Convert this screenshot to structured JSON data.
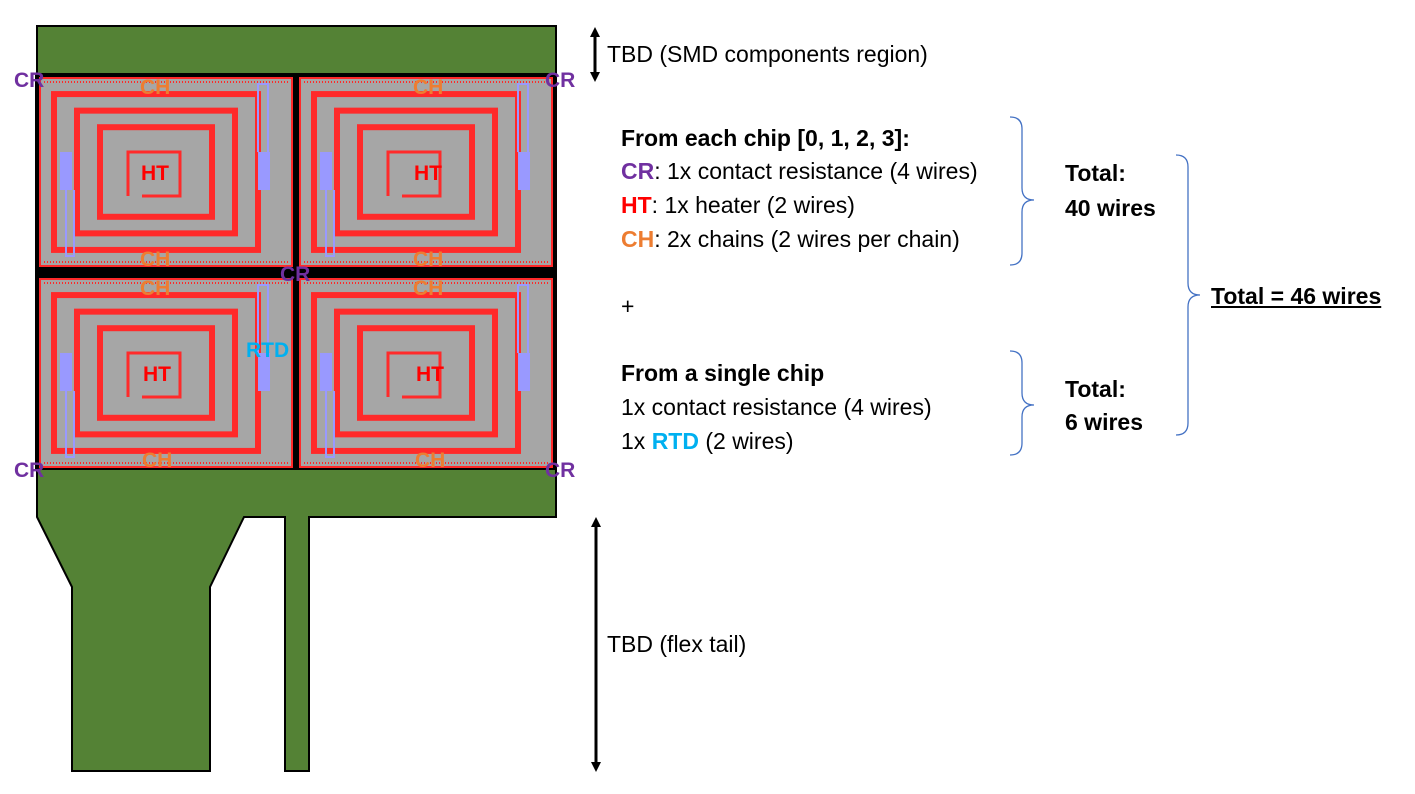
{
  "labels": {
    "cr": "CR",
    "ch": "CH",
    "ht": "HT",
    "rtd": "RTD"
  },
  "annotations": {
    "smd_region": "TBD (SMD components region)",
    "flex_tail": "TBD (flex tail)"
  },
  "group_each_chip": {
    "heading": "From each chip [0, 1, 2, 3]:",
    "line1_rest": ": 1x contact resistance (4 wires)",
    "line2_rest": ": 1x heater (2 wires)",
    "line3_rest": ": 2x chains (2 wires per chain)",
    "total_label": "Total:",
    "total_value": "40 wires"
  },
  "plus": "+",
  "group_single_chip": {
    "heading": "From a single chip",
    "line1": "1x contact resistance (4 wires)",
    "line2_prefix": "1x ",
    "line2_rest": " (2 wires)",
    "total_label": "Total:",
    "total_value": "6 wires"
  },
  "grand_total": "Total = 46 wires",
  "colors": {
    "board_green": "#548235",
    "chip_gray": "#a6a6a6",
    "trace_red": "#ff2a2a",
    "pad_lavender": "#9999ff",
    "cr_purple": "#7030a0",
    "ht_red": "#ff0000",
    "ch_orange": "#ed7d31",
    "rtd_cyan": "#00b0f0",
    "brace_blue": "#4472c4"
  }
}
